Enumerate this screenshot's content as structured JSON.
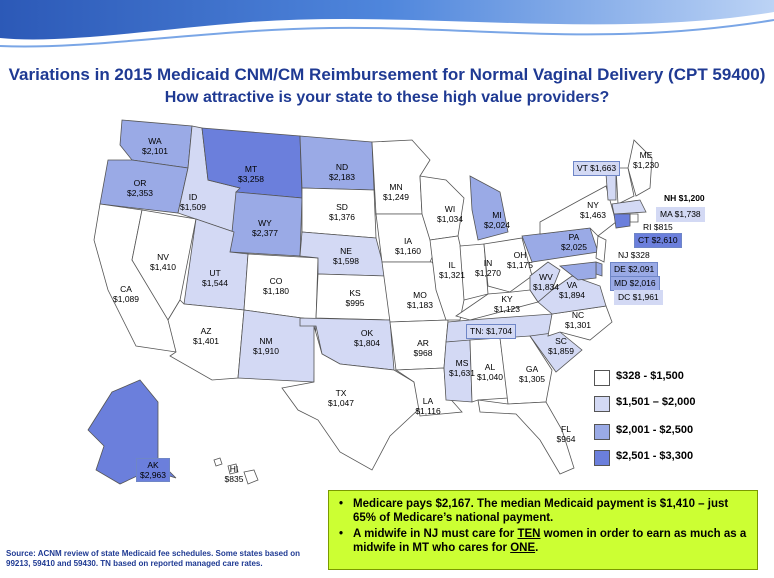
{
  "title": "Variations in 2015  Medicaid CNM/CM Reimbursement for Normal Vaginal Delivery (CPT 59400)",
  "subtitle": "How attractive is your state to these high value providers?",
  "colors": {
    "tier1": "#ffffff",
    "tier2": "#d3d9f4",
    "tier3": "#9aaae6",
    "tier4": "#6b7fdc",
    "title": "#1f3a93",
    "callout_bg": "#ccff33"
  },
  "legend": [
    {
      "label": "$328 - $1,500",
      "tier": "tier1"
    },
    {
      "label": "$1,501 – $2,000",
      "tier": "tier2"
    },
    {
      "label": "$2,001 - $2,500",
      "tier": "tier3"
    },
    {
      "label": "$2,501 - $3,300",
      "tier": "tier4"
    }
  ],
  "states": {
    "WA": {
      "abbr": "WA",
      "value": "$2,101",
      "tier": "tier3"
    },
    "OR": {
      "abbr": "OR",
      "value": "$2,353",
      "tier": "tier3"
    },
    "CA": {
      "abbr": "CA",
      "value": "$1,089",
      "tier": "tier1"
    },
    "NV": {
      "abbr": "NV",
      "value": "$1,410",
      "tier": "tier1"
    },
    "ID": {
      "abbr": "ID",
      "value": "$1,509",
      "tier": "tier2"
    },
    "MT": {
      "abbr": "MT",
      "value": "$3,258",
      "tier": "tier4"
    },
    "WY": {
      "abbr": "WY",
      "value": "$2,377",
      "tier": "tier3"
    },
    "UT": {
      "abbr": "UT",
      "value": "$1,544",
      "tier": "tier2"
    },
    "AZ": {
      "abbr": "AZ",
      "value": "$1,401",
      "tier": "tier1"
    },
    "CO": {
      "abbr": "CO",
      "value": "$1,180",
      "tier": "tier1"
    },
    "NM": {
      "abbr": "NM",
      "value": "$1,910",
      "tier": "tier2"
    },
    "ND": {
      "abbr": "ND",
      "value": "$2,183",
      "tier": "tier3"
    },
    "SD": {
      "abbr": "SD",
      "value": "$1,376",
      "tier": "tier1"
    },
    "NE": {
      "abbr": "NE",
      "value": "$1,598",
      "tier": "tier2"
    },
    "KS": {
      "abbr": "KS",
      "value": "$995",
      "tier": "tier1"
    },
    "OK": {
      "abbr": "OK",
      "value": "$1,804",
      "tier": "tier2"
    },
    "TX": {
      "abbr": "TX",
      "value": "$1,047",
      "tier": "tier1"
    },
    "MN": {
      "abbr": "MN",
      "value": "$1,249",
      "tier": "tier1"
    },
    "IA": {
      "abbr": "IA",
      "value": "$1,160",
      "tier": "tier1"
    },
    "MO": {
      "abbr": "MO",
      "value": "$1,183",
      "tier": "tier1"
    },
    "AR": {
      "abbr": "AR",
      "value": "$968",
      "tier": "tier1"
    },
    "LA": {
      "abbr": "LA",
      "value": "$1,116",
      "tier": "tier1"
    },
    "WI": {
      "abbr": "WI",
      "value": "$1,034",
      "tier": "tier1"
    },
    "IL": {
      "abbr": "IL",
      "value": "$1,321",
      "tier": "tier1"
    },
    "MI": {
      "abbr": "MI",
      "value": "$2,024",
      "tier": "tier3"
    },
    "IN": {
      "abbr": "IN",
      "value": "$1,270",
      "tier": "tier1"
    },
    "OH": {
      "abbr": "OH",
      "value": "$1,175",
      "tier": "tier1"
    },
    "KY": {
      "abbr": "KY",
      "value": "$1,123",
      "tier": "tier1"
    },
    "TN": {
      "abbr": "TN:",
      "value": "$1,704",
      "tier": "tier2"
    },
    "MS": {
      "abbr": "MS",
      "value": "$1,631",
      "tier": "tier2"
    },
    "AL": {
      "abbr": "AL",
      "value": "$1,040",
      "tier": "tier1"
    },
    "GA": {
      "abbr": "GA",
      "value": "$1,305",
      "tier": "tier1"
    },
    "FL": {
      "abbr": "FL",
      "value": "$964",
      "tier": "tier1"
    },
    "SC": {
      "abbr": "SC",
      "value": "$1,859",
      "tier": "tier2"
    },
    "NC": {
      "abbr": "NC",
      "value": "$1,301",
      "tier": "tier1"
    },
    "VA": {
      "abbr": "VA",
      "value": "$1,894",
      "tier": "tier2"
    },
    "WV": {
      "abbr": "WV",
      "value": "$1,834",
      "tier": "tier2"
    },
    "PA": {
      "abbr": "PA",
      "value": "$2,025",
      "tier": "tier3"
    },
    "NY": {
      "abbr": "NY",
      "value": "$1,463",
      "tier": "tier1"
    },
    "ME": {
      "abbr": "ME",
      "value": "$1,230",
      "tier": "tier1"
    },
    "VT": {
      "abbr": "VT",
      "value": "$1,663",
      "tier": "tier2"
    },
    "NH": {
      "abbr": "NH",
      "value": "$1,200",
      "tier": "tier1"
    },
    "MA": {
      "abbr": "MA",
      "value": "$1,738",
      "tier": "tier2"
    },
    "RI": {
      "abbr": "RI",
      "value": "$815",
      "tier": "tier1"
    },
    "CT": {
      "abbr": "CT",
      "value": "$2,610",
      "tier": "tier4"
    },
    "NJ": {
      "abbr": "NJ",
      "value": "$328",
      "tier": "tier1"
    },
    "DE": {
      "abbr": "DE",
      "value": "$2,091",
      "tier": "tier3"
    },
    "MD": {
      "abbr": "MD",
      "value": "$2,016",
      "tier": "tier3"
    },
    "DC": {
      "abbr": "DC",
      "value": "$1,961",
      "tier": "tier2"
    },
    "AK": {
      "abbr": "AK",
      "value": "$2,963",
      "tier": "tier4"
    },
    "HI": {
      "abbr": "HI",
      "value": "$835",
      "tier": "tier1"
    }
  },
  "source": "Source:  ACNM review of state Medicaid fee schedules.  Some states based on 99213, 59410 and 59430.  TN based on reported managed care rates.",
  "callout": {
    "bullet_mark": "•",
    "b1": "Medicare pays $2,167.  The median Medicaid payment is $1,410 – just 65% of Medicare’s national payment.",
    "b2_pre": "A midwife in NJ must care for ",
    "b2_ten": "TEN",
    "b2_mid": "  women in order to earn as much as a midwife in MT who cares for ",
    "b2_one": "ONE",
    "b2_end": "."
  }
}
